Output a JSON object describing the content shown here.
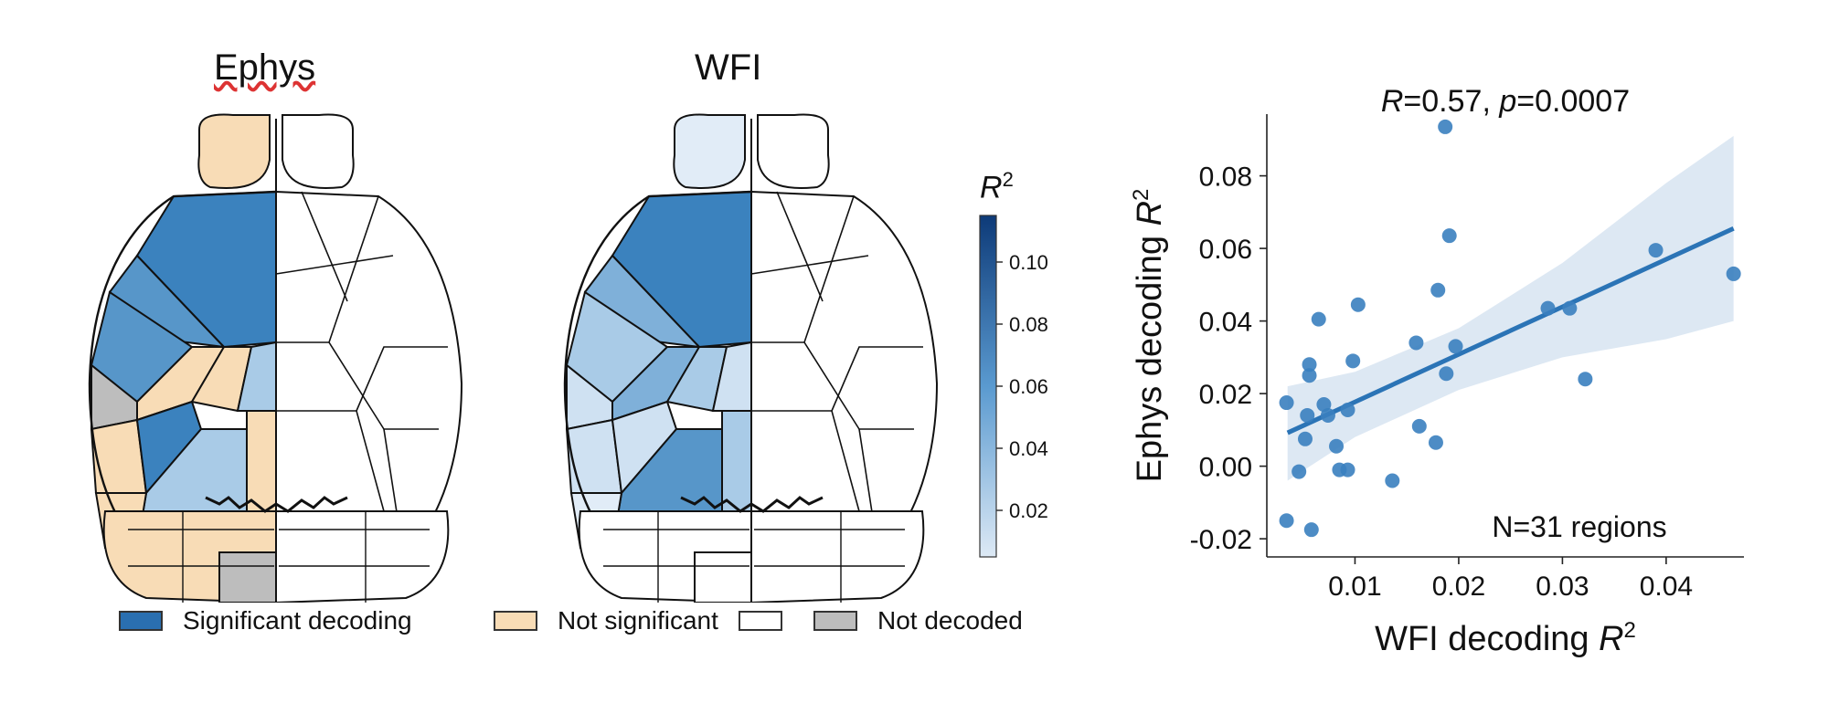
{
  "maps": {
    "ephys_title": "Ephys",
    "wfi_title": "WFI"
  },
  "colorbar": {
    "label": "R",
    "label_sup": "2",
    "ticks": [
      "0.10",
      "0.08",
      "0.06",
      "0.04",
      "0.02"
    ],
    "tick_values": [
      0.1,
      0.08,
      0.06,
      0.04,
      0.02
    ],
    "vmin": 0.005,
    "vmax": 0.115,
    "color_low": "#dde9f5",
    "color_high": "#0d3a78"
  },
  "legend": {
    "significant": "Significant decoding",
    "not_significant": "Not significant",
    "not_decoded": "Not decoded",
    "colors": {
      "significant": "#2a6fb0",
      "not_significant": "#f8dcb6",
      "not_significant_2": "#ffffff",
      "not_decoded": "#bdbdbd"
    }
  },
  "chart_data": {
    "type": "scatter",
    "title": "R=0.57, p=0.0007",
    "title_parts": {
      "r": "R",
      "r_val": "=0.57, ",
      "p": "p",
      "p_val": "=0.0007"
    },
    "xlabel": "WFI decoding R",
    "xlabel_sup": "2",
    "ylabel": "Ephys decoding R",
    "ylabel_sup": "2",
    "annotation": "N=31 regions",
    "xlim": [
      0.0015,
      0.0475
    ],
    "ylim": [
      -0.025,
      0.097
    ],
    "xticks": [
      0.01,
      0.02,
      0.03,
      0.04
    ],
    "xtick_labels": [
      "0.01",
      "0.02",
      "0.03",
      "0.04"
    ],
    "yticks": [
      -0.02,
      0.0,
      0.02,
      0.04,
      0.06,
      0.08
    ],
    "ytick_labels": [
      "-0.02",
      "0.00",
      "0.02",
      "0.04",
      "0.06",
      "0.08"
    ],
    "grid": false,
    "point_color": "#3a7fbf",
    "line_color": "#2b74b6",
    "band_color": "#dde8f3",
    "regression": {
      "x": [
        0.0035,
        0.0465
      ],
      "y": [
        0.0092,
        0.0655
      ]
    },
    "ci_band": {
      "x": [
        0.0035,
        0.01,
        0.02,
        0.03,
        0.04,
        0.0465
      ],
      "upper": [
        0.022,
        0.026,
        0.038,
        0.056,
        0.078,
        0.091
      ],
      "lower": [
        -0.004,
        0.008,
        0.021,
        0.03,
        0.035,
        0.04
      ]
    },
    "series": [
      {
        "x": [
          0.0034,
          0.0034,
          0.0046,
          0.0052,
          0.0054,
          0.0056,
          0.0056,
          0.0058,
          0.0065,
          0.007,
          0.0074,
          0.0082,
          0.0085,
          0.0093,
          0.0093,
          0.0098,
          0.0103,
          0.0136,
          0.0159,
          0.0162,
          0.0178,
          0.018,
          0.0187,
          0.0188,
          0.0191,
          0.0197,
          0.0286,
          0.0307,
          0.0322,
          0.039,
          0.0465
        ],
        "y": [
          0.0175,
          -0.015,
          -0.0015,
          0.0075,
          0.014,
          0.028,
          0.025,
          -0.0175,
          0.0405,
          0.017,
          0.014,
          0.0055,
          -0.001,
          0.0155,
          -0.001,
          0.029,
          0.0445,
          -0.004,
          0.034,
          0.011,
          0.0065,
          0.0485,
          0.0935,
          0.0255,
          0.0635,
          0.033,
          0.0435,
          0.0435,
          0.024,
          0.0595,
          0.053
        ]
      }
    ]
  }
}
